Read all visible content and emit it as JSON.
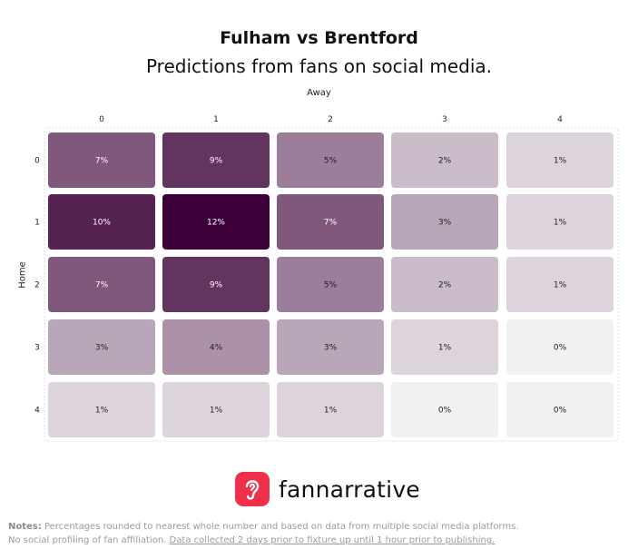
{
  "title": "Fulham vs Brentford",
  "subtitle": "Predictions from fans on social media.",
  "chart_data": {
    "type": "heatmap",
    "xlabel": "Away",
    "ylabel": "Home",
    "x_categories": [
      "0",
      "1",
      "2",
      "3",
      "4"
    ],
    "y_categories": [
      "0",
      "1",
      "2",
      "3",
      "4"
    ],
    "values": [
      [
        7,
        9,
        5,
        2,
        1
      ],
      [
        10,
        12,
        7,
        3,
        1
      ],
      [
        7,
        9,
        5,
        2,
        1
      ],
      [
        3,
        4,
        3,
        1,
        0
      ],
      [
        1,
        1,
        1,
        0,
        0
      ]
    ],
    "value_suffix": "%",
    "color_low": "#f3f0f3",
    "color_high": "#3b0037"
  },
  "brand": {
    "name": "fannarrative",
    "icon": "ear-icon",
    "icon_color": "#f0304a"
  },
  "notes": {
    "label": "Notes:",
    "line1": "Percentages rounded to nearest whole number and based on data from multiple social media platforms.",
    "line2": "No social profiling of fan affiliation.",
    "line2_link": "Data collected 2 days prior to fixture up until 1 hour prior to publishing."
  }
}
